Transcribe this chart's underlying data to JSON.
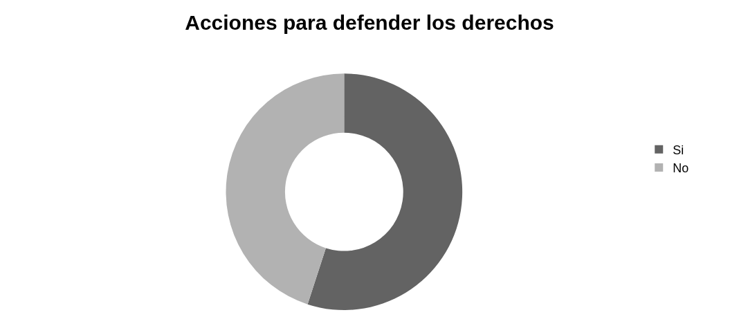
{
  "chart_data": {
    "type": "donut",
    "title": "Acciones para defender los derechos",
    "categories": [
      "Si",
      "No"
    ],
    "values": [
      55,
      45
    ],
    "colors": [
      "#636363",
      "#b2b2b2"
    ],
    "legend": "right"
  }
}
